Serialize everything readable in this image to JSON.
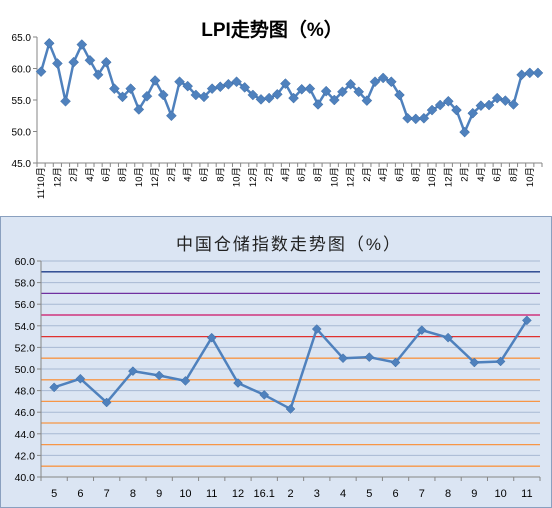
{
  "chart_data": [
    {
      "type": "line",
      "title": "LPI走势图（%）",
      "ylim": [
        45.0,
        65.0
      ],
      "yticks": [
        "45.0",
        "50.0",
        "55.0",
        "60.0",
        "65.0"
      ],
      "grid": false,
      "x_tick_labels": [
        "11’10月",
        "12月",
        "2月",
        "4月",
        "6月",
        "8月",
        "10月",
        "12月",
        "2月",
        "4月",
        "6月",
        "8月",
        "10月",
        "12月",
        "2月",
        "4月",
        "6月",
        "8月",
        "10月",
        "12月",
        "2月",
        "4月",
        "6月",
        "8月",
        "10月",
        "12月",
        "2月",
        "4月",
        "6月",
        "8月",
        "10月"
      ],
      "values": [
        59.5,
        64.0,
        60.8,
        54.8,
        61.0,
        63.8,
        61.3,
        59.0,
        61.0,
        56.8,
        55.5,
        56.8,
        53.5,
        55.6,
        58.1,
        55.8,
        52.5,
        57.9,
        57.2,
        55.8,
        55.5,
        56.8,
        57.1,
        57.5,
        57.9,
        57.0,
        55.8,
        55.1,
        55.3,
        55.9,
        57.6,
        55.3,
        56.7,
        56.8,
        54.3,
        56.4,
        55.0,
        56.3,
        57.5,
        56.3,
        54.9,
        57.9,
        58.5,
        57.9,
        55.8,
        52.1,
        52.0,
        52.1,
        53.4,
        54.2,
        54.8,
        53.4,
        49.9,
        52.9,
        54.1,
        54.2,
        55.3,
        54.9,
        54.3,
        59.0,
        59.3,
        59.3
      ],
      "series_color": "#4f81bd"
    },
    {
      "type": "line",
      "title": "中国仓储指数走势图（%）",
      "categories": [
        "5",
        "6",
        "7",
        "8",
        "9",
        "10",
        "11",
        "12",
        "16.1",
        "2",
        "3",
        "4",
        "5",
        "6",
        "7",
        "8",
        "9",
        "10",
        "11"
      ],
      "values": [
        48.3,
        49.1,
        46.9,
        49.8,
        49.4,
        48.9,
        52.9,
        48.7,
        47.6,
        46.3,
        53.7,
        51.0,
        51.1,
        50.6,
        53.6,
        52.9,
        50.6,
        50.7,
        54.5
      ],
      "ylim": [
        40.0,
        60.0
      ],
      "yticks": [
        "40.0",
        "42.0",
        "44.0",
        "46.0",
        "48.0",
        "50.0",
        "52.0",
        "54.0",
        "56.0",
        "58.0",
        "60.0"
      ],
      "reference_lines": [
        {
          "y": 41,
          "color": "#f79646"
        },
        {
          "y": 43,
          "color": "#f79646"
        },
        {
          "y": 45,
          "color": "#f79646"
        },
        {
          "y": 47,
          "color": "#f79646"
        },
        {
          "y": 49,
          "color": "#f79646"
        },
        {
          "y": 51,
          "color": "#f79646"
        },
        {
          "y": 53,
          "color": "#e0312f"
        },
        {
          "y": 55,
          "color": "#cc1166"
        },
        {
          "y": 57,
          "color": "#7030a0"
        },
        {
          "y": 59,
          "color": "#1f3c88"
        }
      ],
      "grid": true,
      "series_color": "#4f81bd"
    }
  ]
}
